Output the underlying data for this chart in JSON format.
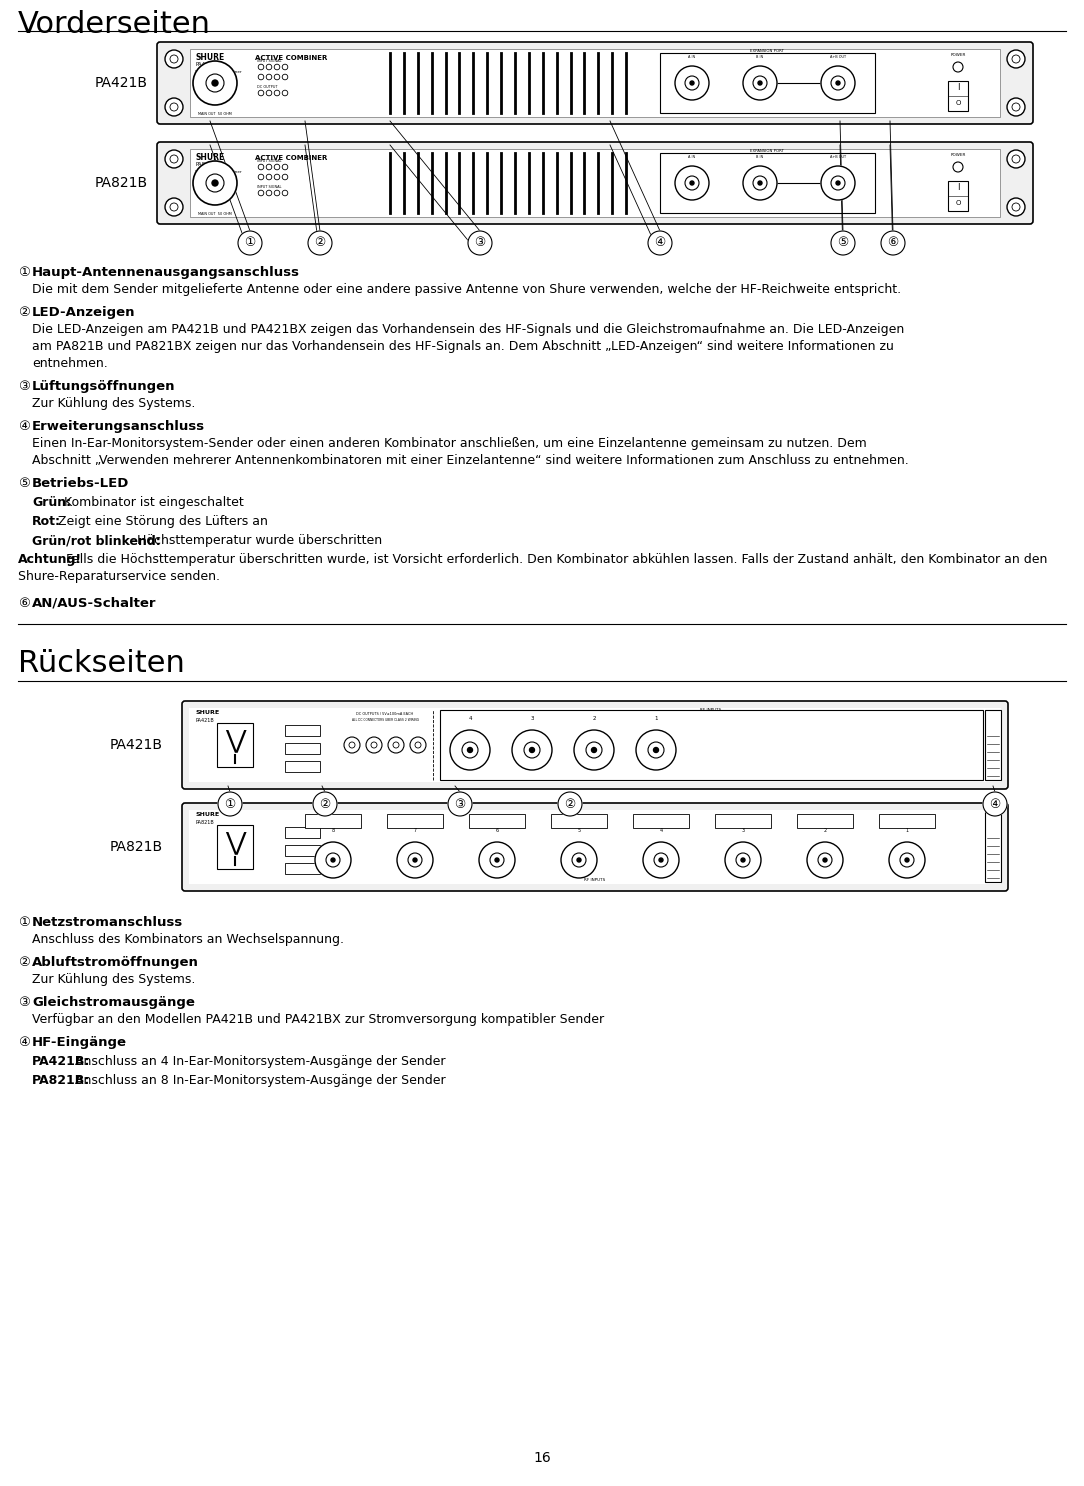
{
  "title_vorderseiten": "Vorderseiten",
  "title_rueckseiten": "Rückseiten",
  "page_number": "16",
  "background_color": "#ffffff",
  "text_color": "#000000",
  "section1_items": [
    {
      "num": "①",
      "heading": "Haupt-Antennenausgangsanschluss",
      "body": "Die mit dem Sender mitgelieferte Antenne oder eine andere passive Antenne von Shure verwenden, welche der HF-Reichweite entspricht."
    },
    {
      "num": "②",
      "heading": "LED-Anzeigen",
      "body1": "Die LED-Anzeigen am PA421B und PA421BX zeigen das Vorhandensein des HF-Signals und die Gleichstromaufnahme an. Die LED-Anzeigen",
      "body2": "am PA821B und PA821BX zeigen nur das Vorhandensein des HF-Signals an. Dem Abschnitt „LED-Anzeigen“ sind weitere Informationen zu",
      "body3": "entnehmen."
    },
    {
      "num": "③",
      "heading": "Lüftungsöffnungen",
      "body": "Zur Kühlung des Systems."
    },
    {
      "num": "④",
      "heading": "Erweiterungsanschluss",
      "body1": "Einen In-Ear-Monitorsystem-Sender oder einen anderen Kombinator anschließen, um eine Einzelantenne gemeinsam zu nutzen. Dem",
      "body2": "Abschnitt „Verwenden mehrerer Antennenkombinatoren mit einer Einzelantenne“ sind weitere Informationen zum Anschluss zu entnehmen."
    },
    {
      "num": "⑤",
      "heading": "Betriebs-LED",
      "sub_bold": [
        "Grün:",
        "Rot:",
        "Grün/rot blinkend:"
      ],
      "sub_text": [
        " Kombinator ist eingeschaltet",
        " Zeigt eine Störung des Lüfters an",
        " Höchsttemperatur wurde überschritten"
      ],
      "achtung_bold": "Achtung!",
      "achtung_text1": " Falls die Höchsttemperatur überschritten wurde, ist Vorsicht erforderlich. Den Kombinator abkühlen lassen. Falls der Zustand anhält, den Kombinator an den",
      "achtung_text2": "Shure-Reparaturservice senden."
    },
    {
      "num": "⑥",
      "heading": "AN/AUS-Schalter",
      "body": ""
    }
  ],
  "section2_items": [
    {
      "num": "①",
      "heading": "Netzstromanschluss",
      "body": "Anschluss des Kombinators an Wechselspannung."
    },
    {
      "num": "②",
      "heading": "Abluftstromöffnungen",
      "body": "Zur Kühlung des Systems."
    },
    {
      "num": "③",
      "heading": "Gleichstromausgänge",
      "body": "Verfügbar an den Modellen PA421B und PA421BX zur Stromversorgung kompatibler Sender"
    },
    {
      "num": "④",
      "heading": "HF-Eingänge",
      "sub_bold": [
        "PA421B:",
        "PA821B:"
      ],
      "sub_text": [
        " Anschluss an 4 In-Ear-Monitorsystem-Ausgänge der Sender",
        " Anschluss an 8 In-Ear-Monitorsystem-Ausgänge der Sender"
      ]
    }
  ]
}
